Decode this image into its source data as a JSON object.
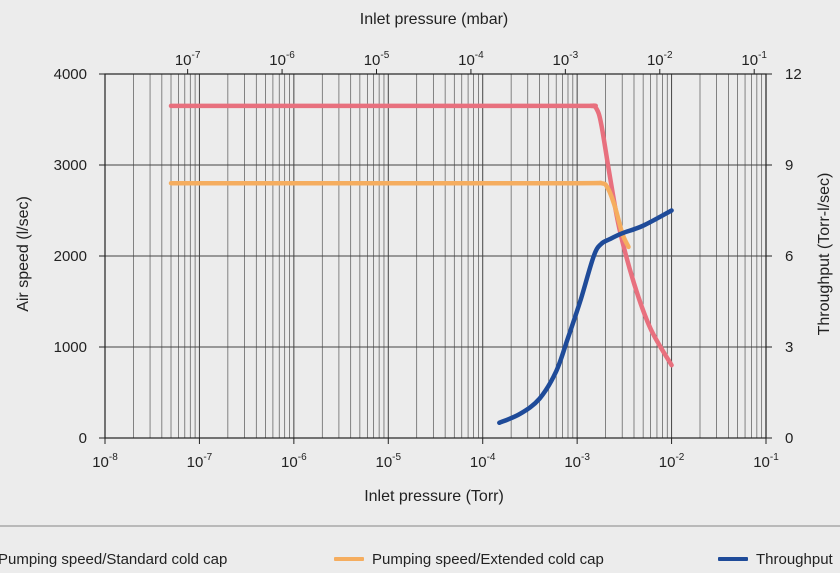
{
  "chart_data": {
    "type": "line",
    "title": "",
    "top_axis_label": "Inlet pressure (mbar)",
    "xlabel": "Inlet pressure (Torr)",
    "ylabel_left": "Air speed (l/sec)",
    "ylabel_right": "Throughput (Torr-l/sec)",
    "x_scale": "log",
    "xlim": [
      1e-08,
      0.1
    ],
    "x_ticks": [
      {
        "base": "10",
        "exp": "-8"
      },
      {
        "base": "10",
        "exp": "-7"
      },
      {
        "base": "10",
        "exp": "-6"
      },
      {
        "base": "10",
        "exp": "-5"
      },
      {
        "base": "10",
        "exp": "-4"
      },
      {
        "base": "10",
        "exp": "-3"
      },
      {
        "base": "10",
        "exp": "-2"
      },
      {
        "base": "10",
        "exp": "-1"
      }
    ],
    "top_ticks": [
      {
        "base": "10",
        "exp": "-7"
      },
      {
        "base": "10",
        "exp": "-6"
      },
      {
        "base": "10",
        "exp": "-5"
      },
      {
        "base": "10",
        "exp": "-4"
      },
      {
        "base": "10",
        "exp": "-3"
      },
      {
        "base": "10",
        "exp": "-2"
      },
      {
        "base": "10",
        "exp": "-1"
      }
    ],
    "ylim_left": [
      0,
      4000
    ],
    "y_ticks_left": [
      "0",
      "1000",
      "2000",
      "3000",
      "4000"
    ],
    "ylim_right": [
      0,
      12
    ],
    "y_ticks_right": [
      "0",
      "3",
      "6",
      "9",
      "12"
    ],
    "grid": true,
    "legend_position": "bottom",
    "series": [
      {
        "name": "Pumping speed/Standard cold cap",
        "axis": "left",
        "color": "#e8707e",
        "points": [
          [
            5e-08,
            3650
          ],
          [
            1e-07,
            3650
          ],
          [
            1e-05,
            3650
          ],
          [
            0.001,
            3650
          ],
          [
            0.0014,
            3650
          ],
          [
            0.0016,
            3620
          ],
          [
            0.0018,
            3450
          ],
          [
            0.0022,
            2900
          ],
          [
            0.0028,
            2300
          ],
          [
            0.004,
            1700
          ],
          [
            0.006,
            1200
          ],
          [
            0.01,
            800
          ]
        ]
      },
      {
        "name": "Pumping speed/Extended cold cap",
        "axis": "left",
        "color": "#f5ad5f",
        "points": [
          [
            5e-08,
            2800
          ],
          [
            1e-07,
            2800
          ],
          [
            1e-05,
            2800
          ],
          [
            0.001,
            2800
          ],
          [
            0.0018,
            2800
          ],
          [
            0.0021,
            2750
          ],
          [
            0.0025,
            2550
          ],
          [
            0.003,
            2250
          ],
          [
            0.0035,
            2100
          ]
        ]
      },
      {
        "name": "Throughput",
        "axis": "right",
        "color": "#1f4b99",
        "points": [
          [
            0.00015,
            0.5
          ],
          [
            0.00025,
            0.8
          ],
          [
            0.0004,
            1.3
          ],
          [
            0.0006,
            2.2
          ],
          [
            0.0008,
            3.3
          ],
          [
            0.0011,
            4.6
          ],
          [
            0.0015,
            6.0
          ],
          [
            0.0018,
            6.4
          ],
          [
            0.0022,
            6.55
          ],
          [
            0.003,
            6.75
          ],
          [
            0.005,
            7.0
          ],
          [
            0.01,
            7.5
          ]
        ]
      }
    ]
  }
}
